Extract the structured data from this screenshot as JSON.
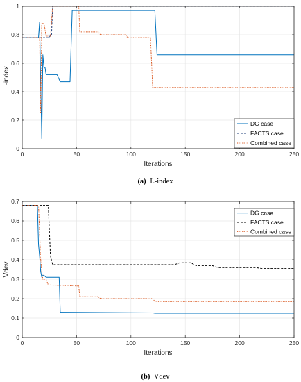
{
  "chart_data": [
    {
      "type": "line",
      "caption_letter": "(a)",
      "caption_text": "L-index",
      "xlabel": "Iterations",
      "ylabel": "L-index",
      "xlim": [
        0,
        250
      ],
      "ylim": [
        0,
        1
      ],
      "xticks": [
        "0",
        "50",
        "100",
        "150",
        "200",
        "250"
      ],
      "yticks": [
        "0",
        "0.2",
        "0.4",
        "0.6",
        "0.8",
        "1"
      ],
      "grid": true,
      "legend_position": "bottom-right",
      "series": [
        {
          "name": "DG case",
          "color": "#0072bd",
          "style": "solid",
          "x": [
            0,
            15,
            16,
            17,
            18,
            19,
            20,
            21,
            22,
            25,
            28,
            32,
            35,
            38,
            44,
            46,
            122,
            124,
            250
          ],
          "y": [
            0.78,
            0.78,
            0.89,
            0.47,
            0.07,
            0.66,
            0.57,
            0.57,
            0.52,
            0.52,
            0.52,
            0.52,
            0.47,
            0.47,
            0.47,
            0.97,
            0.97,
            0.66,
            0.66
          ]
        },
        {
          "name": "FACTS case",
          "color": "#1f3f7a",
          "style": "dashed",
          "x": [
            0,
            25,
            26,
            27,
            28,
            250
          ],
          "y": [
            0.78,
            0.78,
            0.8,
            0.8,
            1.0,
            1.0
          ]
        },
        {
          "name": "Combined case",
          "color": "#d95319",
          "style": "dotted",
          "x": [
            0,
            16,
            17,
            18,
            20,
            22,
            24,
            26,
            28,
            52,
            53,
            70,
            72,
            95,
            97,
            118,
            120,
            250
          ],
          "y": [
            0.78,
            0.78,
            0.25,
            0.88,
            0.88,
            0.79,
            0.79,
            0.79,
            1.0,
            1.0,
            0.82,
            0.82,
            0.8,
            0.8,
            0.78,
            0.78,
            0.43,
            0.43
          ]
        }
      ]
    },
    {
      "type": "line",
      "caption_letter": "(b)",
      "caption_text": "Vdev",
      "xlabel": "Iterations",
      "ylabel": "Vdev",
      "xlim": [
        0,
        250
      ],
      "ylim": [
        0,
        0.7
      ],
      "xticks": [
        "0",
        "50",
        "100",
        "150",
        "200",
        "250"
      ],
      "yticks": [
        "0",
        "0.1",
        "0.2",
        "0.3",
        "0.4",
        "0.5",
        "0.6",
        "0.7"
      ],
      "grid": true,
      "legend_position": "top-right",
      "series": [
        {
          "name": "DG case",
          "color": "#0072bd",
          "style": "solid",
          "x": [
            0,
            14,
            15,
            16,
            17,
            18,
            19,
            20,
            22,
            24,
            27,
            34,
            35,
            36,
            120,
            122,
            250
          ],
          "y": [
            0.68,
            0.68,
            0.48,
            0.42,
            0.34,
            0.31,
            0.32,
            0.32,
            0.31,
            0.31,
            0.31,
            0.31,
            0.13,
            0.13,
            0.127,
            0.125,
            0.125
          ]
        },
        {
          "name": "FACTS case",
          "color": "#000000",
          "style": "dashed",
          "x": [
            0,
            24,
            25,
            26,
            28,
            140,
            145,
            155,
            160,
            175,
            180,
            215,
            220,
            250
          ],
          "y": [
            0.68,
            0.68,
            0.55,
            0.42,
            0.375,
            0.375,
            0.385,
            0.385,
            0.37,
            0.37,
            0.36,
            0.36,
            0.355,
            0.355
          ]
        },
        {
          "name": "Combined case",
          "color": "#d95319",
          "style": "dotted",
          "x": [
            0,
            15,
            17,
            18,
            19,
            22,
            24,
            26,
            52,
            53,
            70,
            72,
            120,
            122,
            250
          ],
          "y": [
            0.68,
            0.68,
            0.4,
            0.34,
            0.3,
            0.3,
            0.27,
            0.27,
            0.265,
            0.21,
            0.21,
            0.2,
            0.2,
            0.185,
            0.185
          ]
        }
      ]
    }
  ]
}
